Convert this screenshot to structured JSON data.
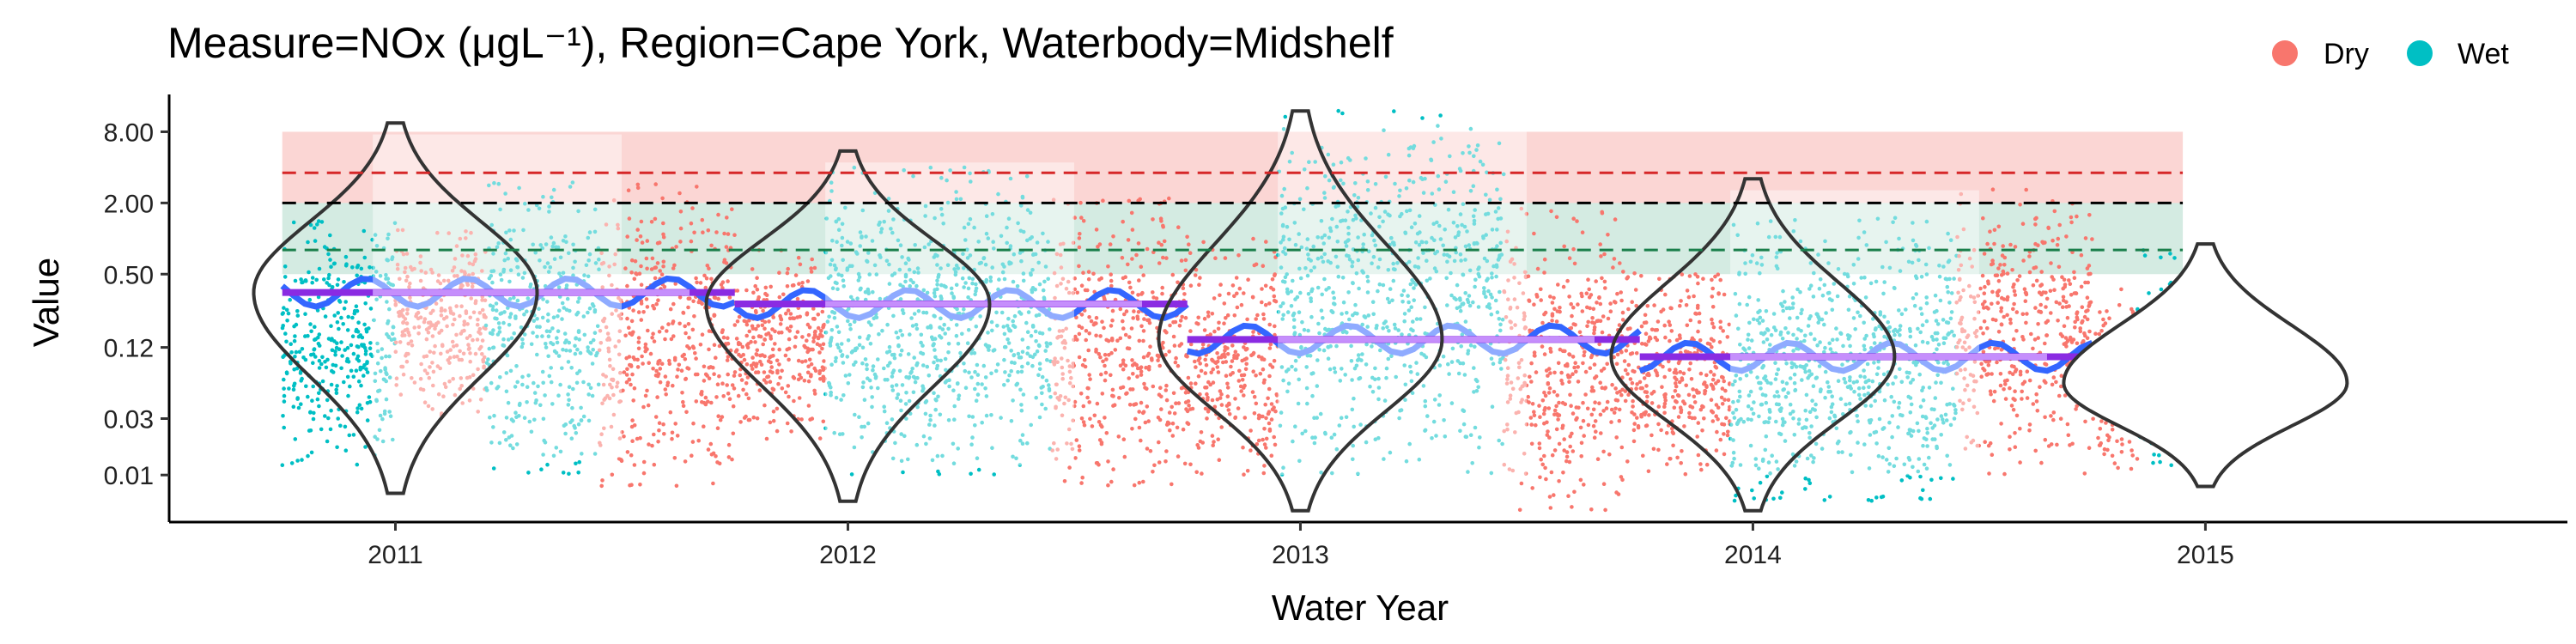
{
  "chart_data": {
    "type": "scatter",
    "title": "Measure=NOx (μgL⁻¹), Region=Cape York, Waterbody=Midshelf",
    "xlabel": "Water Year",
    "ylabel": "Value",
    "y_scale": "log",
    "ylim": [
      0.004,
      14
    ],
    "y_ticks": [
      {
        "value": 0.01,
        "label": "0.01"
      },
      {
        "value": 0.03,
        "label": "0.03"
      },
      {
        "value": 0.12,
        "label": "0.12"
      },
      {
        "value": 0.5,
        "label": "0.50"
      },
      {
        "value": 2,
        "label": "2.00"
      },
      {
        "value": 8,
        "label": "8.00"
      }
    ],
    "categories": [
      "2011",
      "2012",
      "2013",
      "2014",
      "2015"
    ],
    "legend": {
      "placement": "top-right",
      "items": [
        {
          "label": "Dry",
          "color": "#F8766D"
        },
        {
          "label": "Wet",
          "color": "#00BFC4"
        }
      ]
    },
    "guidelines": {
      "upper": 3.6,
      "mid": 2.0,
      "lower": 0.8,
      "upper_band": [
        2.0,
        8.0
      ],
      "lower_band": [
        0.5,
        2.0
      ],
      "colors": {
        "upper_line": "#d62728",
        "mid_line": "#000000",
        "lower_line": "#1a7f4b",
        "upper_band": "#f8b4b0",
        "lower_band": "#9fd3bf"
      }
    },
    "years": [
      {
        "year": "2011",
        "median": 0.35,
        "violin_min": 0.007,
        "violin_max": 9.5,
        "seasons": [
          {
            "season": "Wet",
            "start": 2010.75,
            "end": 2011.0,
            "lo": 0.012,
            "hi": 1.5
          },
          {
            "season": "Dry",
            "start": 2011.0,
            "end": 2011.2,
            "lo": 0.03,
            "hi": 1.2
          },
          {
            "season": "Wet",
            "start": 2011.2,
            "end": 2011.45,
            "lo": 0.01,
            "hi": 3.0
          },
          {
            "season": "Dry",
            "start": 2011.45,
            "end": 2011.75,
            "lo": 0.008,
            "hi": 3.0
          }
        ]
      },
      {
        "year": "2012",
        "median": 0.28,
        "violin_min": 0.006,
        "violin_max": 5.5,
        "seasons": [
          {
            "season": "Dry",
            "start": 2011.75,
            "end": 2011.95,
            "lo": 0.02,
            "hi": 0.8
          },
          {
            "season": "Wet",
            "start": 2011.95,
            "end": 2012.45,
            "lo": 0.01,
            "hi": 4.0
          },
          {
            "season": "Dry",
            "start": 2012.45,
            "end": 2012.75,
            "lo": 0.008,
            "hi": 2.2
          }
        ]
      },
      {
        "year": "2013",
        "median": 0.14,
        "violin_min": 0.005,
        "violin_max": 12.0,
        "seasons": [
          {
            "season": "Dry",
            "start": 2012.75,
            "end": 2012.95,
            "lo": 0.01,
            "hi": 1.0
          },
          {
            "season": "Wet",
            "start": 2012.95,
            "end": 2013.45,
            "lo": 0.01,
            "hi": 12.0
          },
          {
            "season": "Dry",
            "start": 2013.45,
            "end": 2013.75,
            "lo": 0.005,
            "hi": 1.8
          }
        ]
      },
      {
        "year": "2014",
        "median": 0.1,
        "violin_min": 0.005,
        "violin_max": 3.2,
        "seasons": [
          {
            "season": "Dry",
            "start": 2013.75,
            "end": 2013.95,
            "lo": 0.01,
            "hi": 0.5
          },
          {
            "season": "Wet",
            "start": 2013.95,
            "end": 2014.45,
            "lo": 0.006,
            "hi": 1.5
          },
          {
            "season": "Dry",
            "start": 2014.45,
            "end": 2014.75,
            "lo": 0.01,
            "hi": 2.6
          }
        ]
      },
      {
        "year": "2015",
        "median": 0.06,
        "violin_min": 0.008,
        "violin_max": 0.9,
        "seasons": [
          {
            "season": "Dry",
            "start": 2014.75,
            "end": 2014.85,
            "lo": 0.01,
            "hi": 0.4
          },
          {
            "season": "Wet",
            "start": 2014.85,
            "end": 2014.95,
            "lo": 0.012,
            "hi": 0.8
          }
        ]
      }
    ]
  }
}
